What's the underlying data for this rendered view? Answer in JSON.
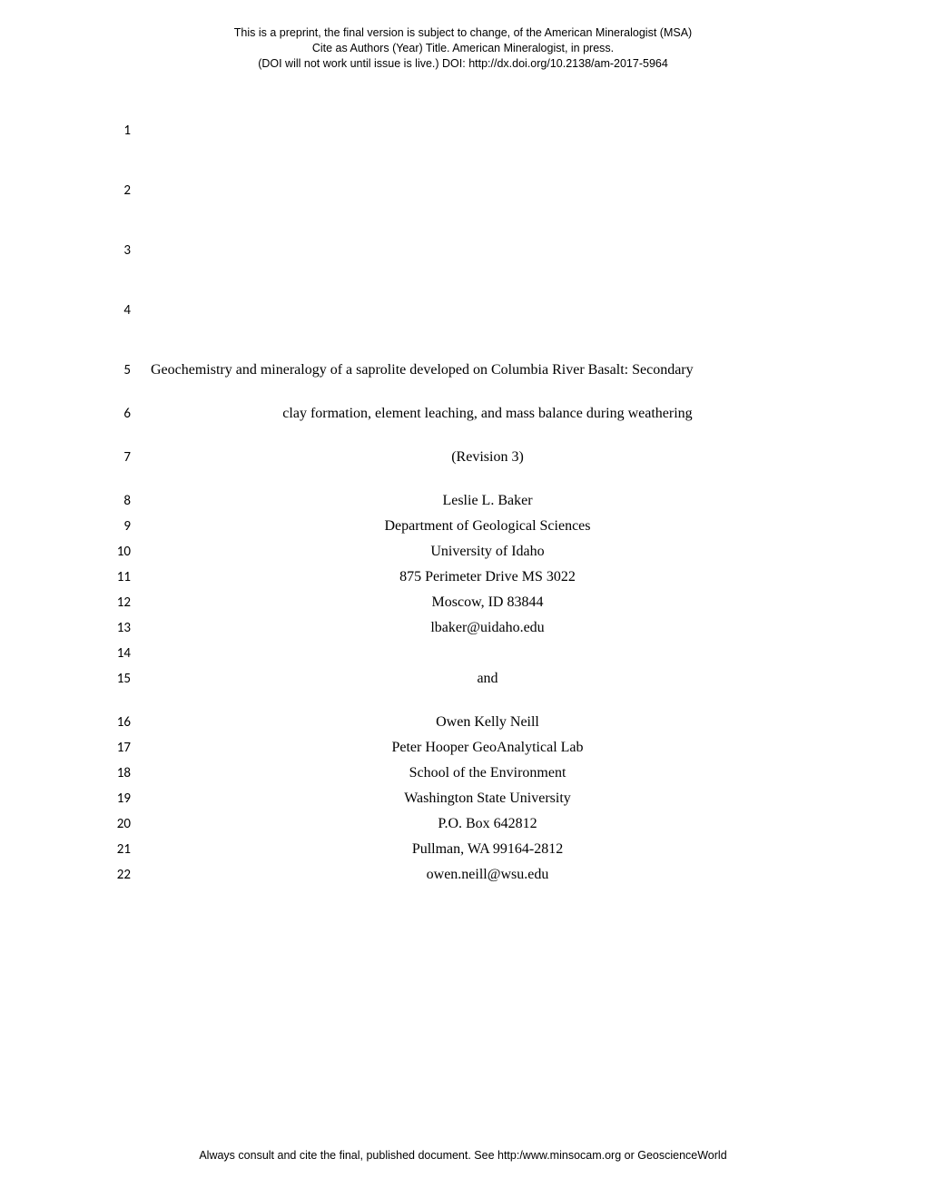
{
  "header": {
    "line1": "This is a preprint, the final version is subject to change, of the American Mineralogist (MSA)",
    "line2": "Cite as Authors (Year) Title. American Mineralogist, in press.",
    "line3": "(DOI will not work until issue is live.) DOI: http://dx.doi.org/10.2138/am-2017-5964"
  },
  "footer": "Always consult and cite the final, published document. See http:/www.minsocam.org or GeoscienceWorld",
  "lines": {
    "l1": "1",
    "l2": "2",
    "l3": "3",
    "l4": "4",
    "l5": "5",
    "l6": "6",
    "l7": "7",
    "l8": "8",
    "l9": "9",
    "l10": "10",
    "l11": "11",
    "l12": "12",
    "l13": "13",
    "l14": "14",
    "l15": "15",
    "l16": "16",
    "l17": "17",
    "l18": "18",
    "l19": "19",
    "l20": "20",
    "l21": "21",
    "l22": "22"
  },
  "body": {
    "title1": "Geochemistry and mineralogy of a saprolite developed on Columbia River Basalt: Secondary",
    "title2": "clay formation, element leaching, and mass balance during weathering",
    "revision": "(Revision 3)",
    "a1_name": "Leslie L. Baker",
    "a1_dept": "Department of Geological Sciences",
    "a1_univ": "University of Idaho",
    "a1_addr": "875 Perimeter Drive MS 3022",
    "a1_city": "Moscow, ID 83844",
    "a1_email": "lbaker@uidaho.edu",
    "and": "and",
    "a2_name": "Owen Kelly Neill",
    "a2_lab": "Peter Hooper GeoAnalytical Lab",
    "a2_school": "School of the Environment",
    "a2_univ": "Washington State University",
    "a2_po": "P.O. Box 642812",
    "a2_city": "Pullman, WA 99164-2812",
    "a2_email": "owen.neill@wsu.edu"
  }
}
